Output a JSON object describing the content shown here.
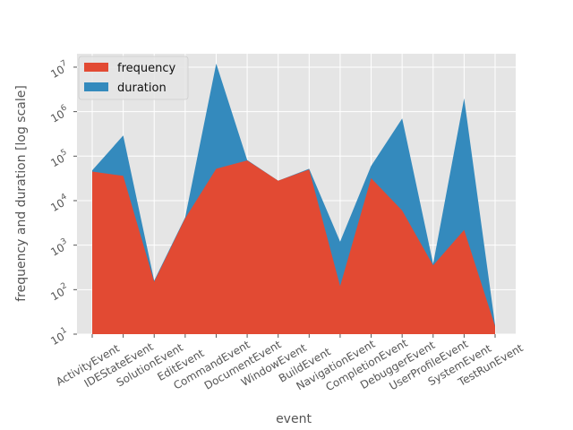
{
  "chart_data": {
    "type": "area",
    "stacked": true,
    "title": "",
    "xlabel": "event",
    "ylabel": "frequency and duration  [log scale]",
    "yscale": "log",
    "ylim": [
      10,
      20000000
    ],
    "grid": true,
    "legend_position": "top-left",
    "categories": [
      "ActivityEvent",
      "IDEStateEvent",
      "SolutionEvent",
      "EditEvent",
      "CommandEvent",
      "DocumentEvent",
      "WindowEvent",
      "BuildEvent",
      "NavigationEvent",
      "CompletionEvent",
      "DebuggerEvent",
      "UserProfileEvent",
      "SystemEvent",
      "TestRunEvent"
    ],
    "yticks": [
      {
        "value": 10,
        "base": "10",
        "exp": "1"
      },
      {
        "value": 100,
        "base": "10",
        "exp": "2"
      },
      {
        "value": 1000,
        "base": "10",
        "exp": "3"
      },
      {
        "value": 10000,
        "base": "10",
        "exp": "4"
      },
      {
        "value": 100000,
        "base": "10",
        "exp": "5"
      },
      {
        "value": 1000000,
        "base": "10",
        "exp": "6"
      },
      {
        "value": 10000000,
        "base": "10",
        "exp": "7"
      }
    ],
    "series": [
      {
        "name": "frequency",
        "color": "#E24A33",
        "values": [
          45000,
          36000,
          150,
          4000,
          52000,
          80000,
          28000,
          50000,
          120,
          32000,
          6000,
          350,
          2200,
          15
        ]
      },
      {
        "name": "duration",
        "color": "#348ABD",
        "values": [
          48000,
          290000,
          160,
          4200,
          12000000,
          82000,
          28000,
          52000,
          1200,
          60000,
          700000,
          380,
          2000000,
          16
        ]
      }
    ]
  }
}
